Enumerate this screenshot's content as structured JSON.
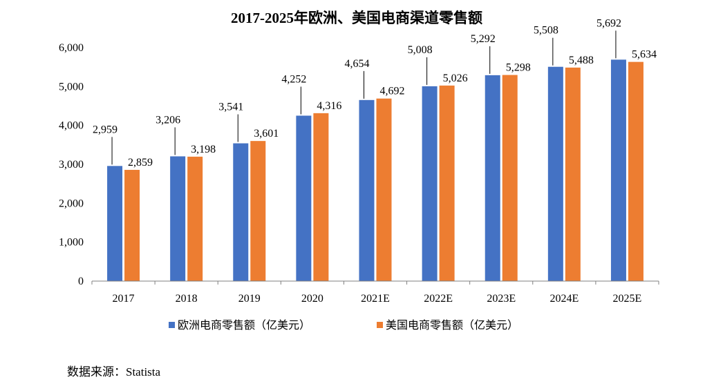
{
  "chart_data": {
    "type": "bar",
    "title": "2017-2025年欧洲、美国电商渠道零售额",
    "categories": [
      "2017",
      "2018",
      "2019",
      "2020",
      "2021E",
      "2022E",
      "2023E",
      "2024E",
      "2025E"
    ],
    "series": [
      {
        "name": "欧洲电商零售额（亿美元）",
        "color": "#4472C4",
        "values": [
          2959,
          3206,
          3541,
          4252,
          4654,
          5008,
          5292,
          5508,
          5692
        ],
        "labels": [
          "2,959",
          "3,206",
          "3,541",
          "4,252",
          "4,654",
          "5,008",
          "5,292",
          "5,508",
          "5,692"
        ]
      },
      {
        "name": "美国电商零售额（亿美元）",
        "color": "#ED7D31",
        "values": [
          2859,
          3198,
          3601,
          4316,
          4692,
          5026,
          5298,
          5488,
          5634
        ],
        "labels": [
          "2,859",
          "3,198",
          "3,601",
          "4,316",
          "4,692",
          "5,026",
          "5,298",
          "5,488",
          "5,634"
        ]
      }
    ],
    "ylim": [
      0,
      6000
    ],
    "yticks": [
      0,
      1000,
      2000,
      3000,
      4000,
      5000,
      6000
    ],
    "ytick_labels": [
      "0",
      "1,000",
      "2,000",
      "3,000",
      "4,000",
      "5,000",
      "6,000"
    ],
    "grid": false,
    "legend_position": "bottom"
  },
  "source_note": "数据来源：Statista"
}
